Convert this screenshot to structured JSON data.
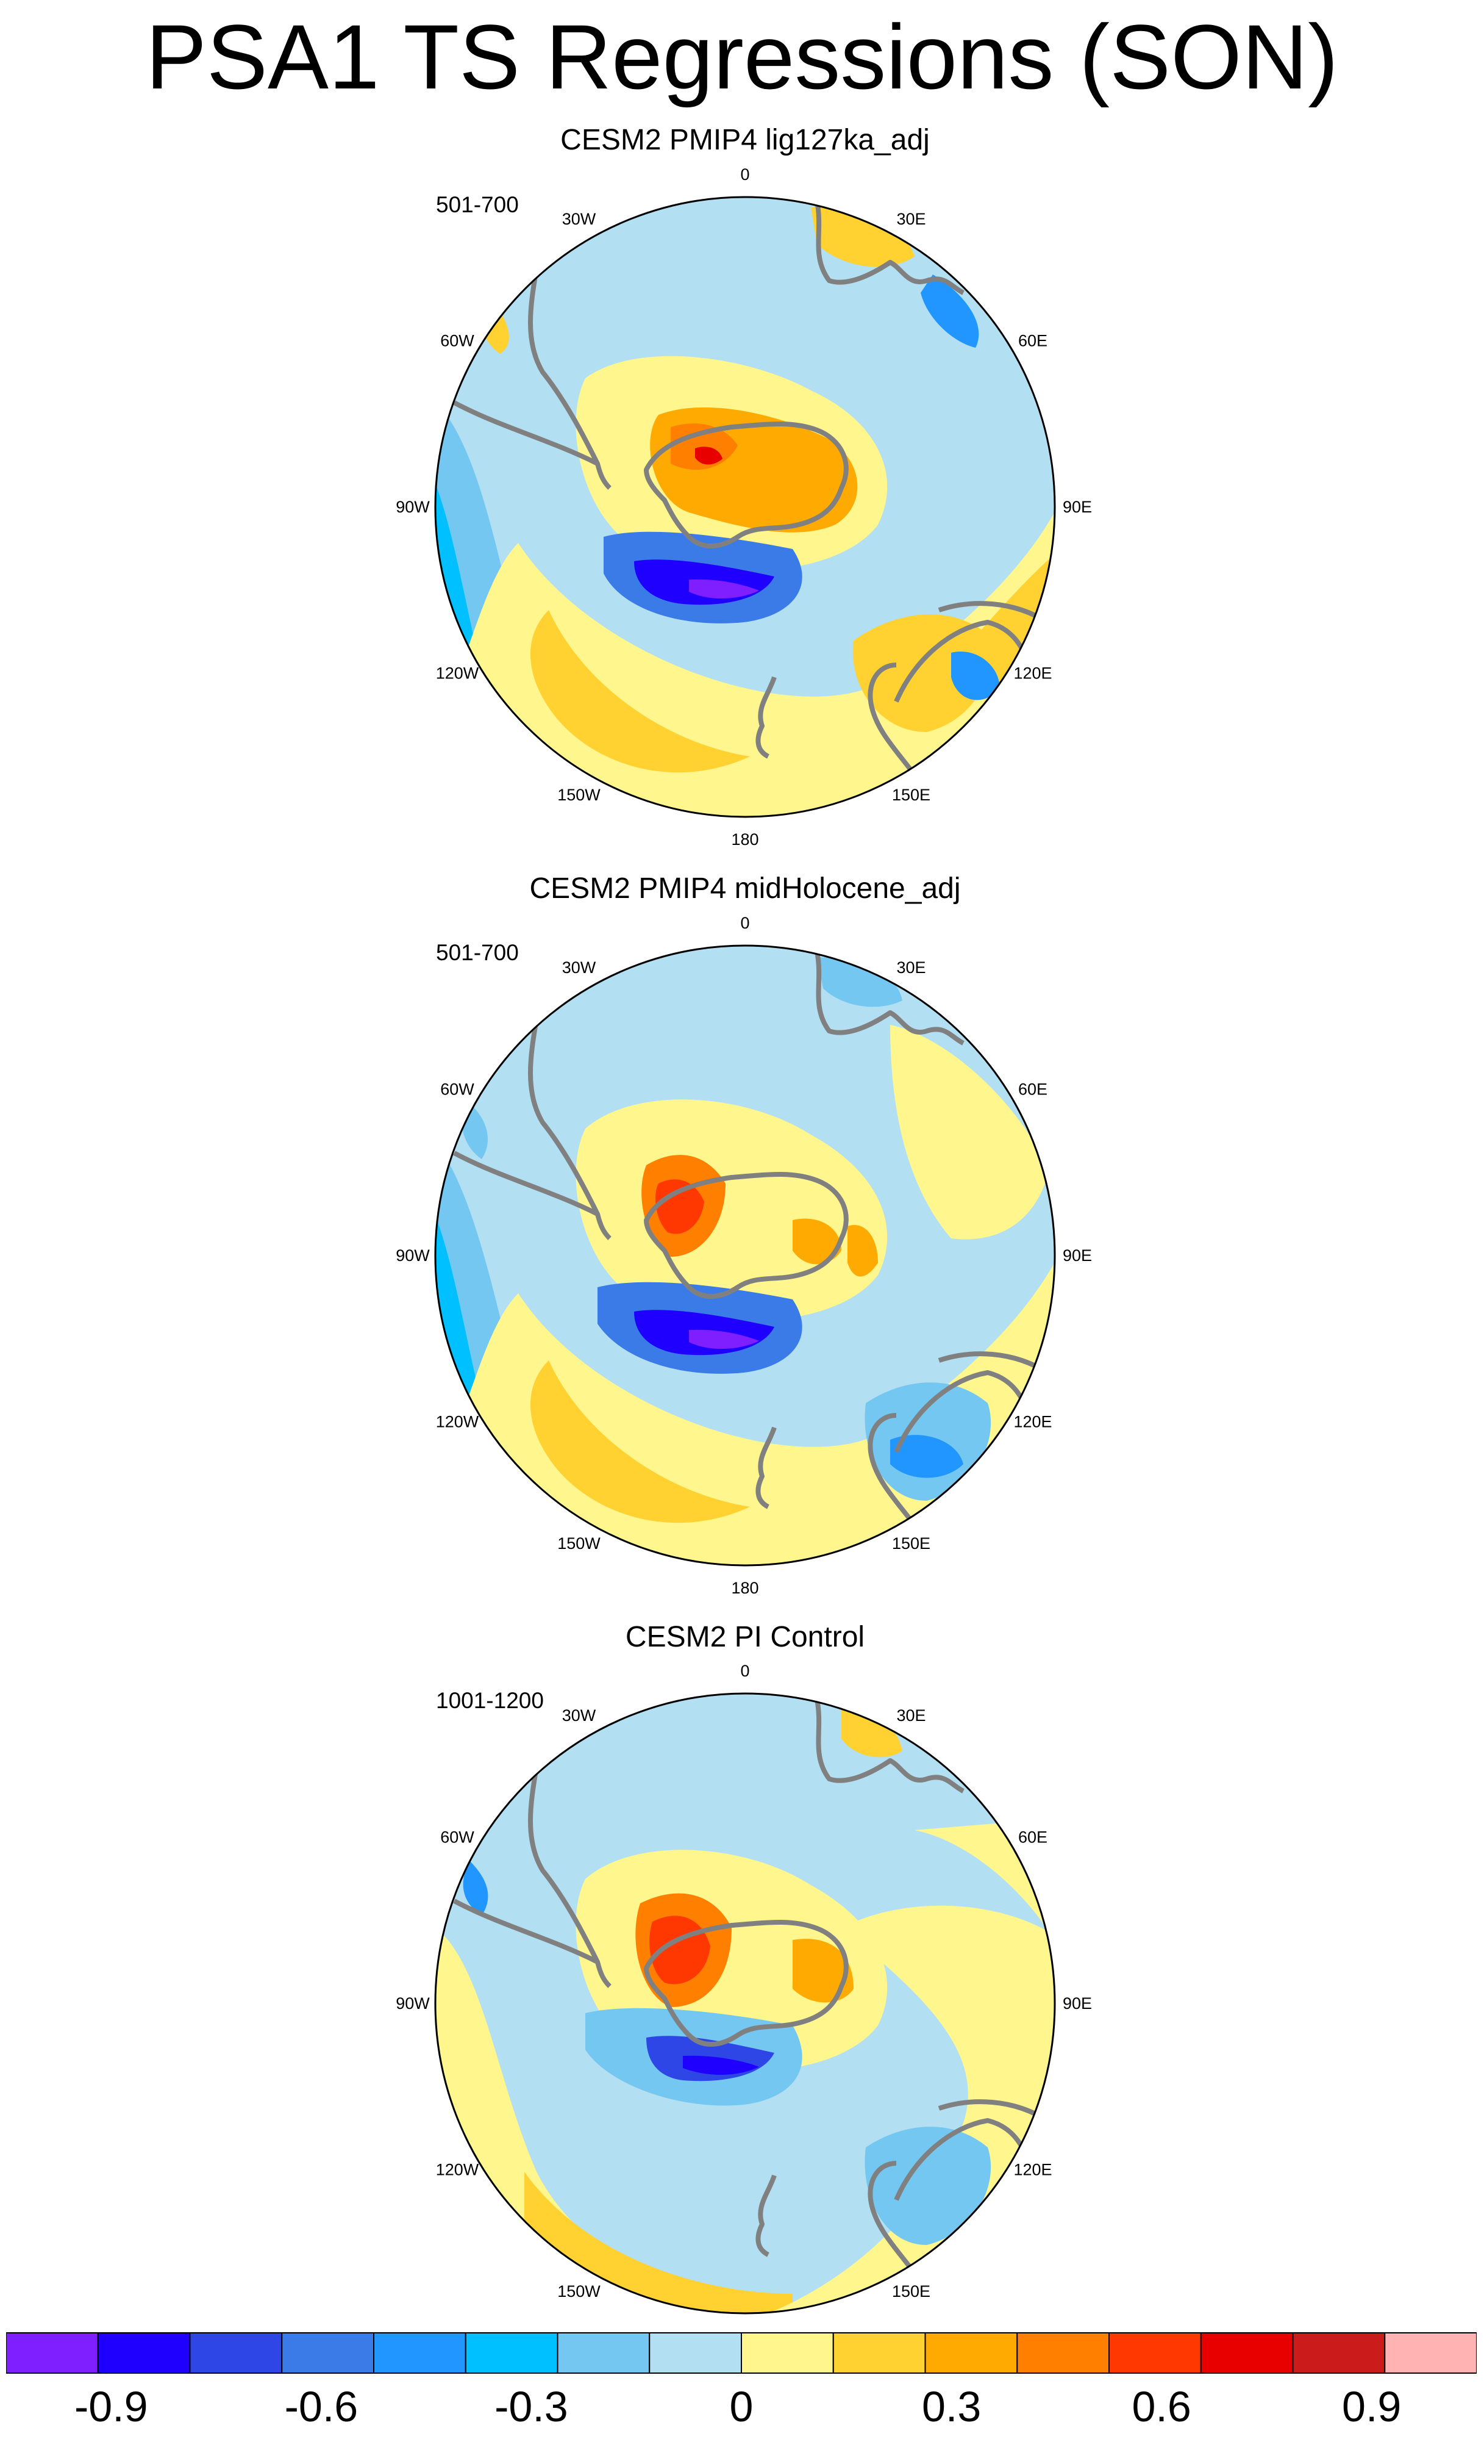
{
  "title": "PSA1 TS Regressions (SON)",
  "panels": [
    {
      "subtitle": "CESM2 PMIP4 lig127ka_adj",
      "years": "501-700"
    },
    {
      "subtitle": "CESM2 PMIP4 midHolocene_adj",
      "years": "501-700"
    },
    {
      "subtitle": "CESM2 PI Control",
      "years": "1001-1200"
    }
  ],
  "longitude_labels": [
    "0",
    "30E",
    "60E",
    "90E",
    "120E",
    "150E",
    "180",
    "150W",
    "120W",
    "90W",
    "60W",
    "30W"
  ],
  "colorbar": {
    "colors": [
      "#7f1fff",
      "#1f00ff",
      "#2f46e6",
      "#3a7be8",
      "#2196ff",
      "#00c0ff",
      "#74c7f0",
      "#b3dff2",
      "#fff68d",
      "#ffd131",
      "#ffaa00",
      "#ff7f00",
      "#ff3700",
      "#e80000",
      "#cc1b1b",
      "#ffb3b3"
    ],
    "labels": [
      "-0.9",
      "-0.6",
      "-0.3",
      "0",
      "0.3",
      "0.6",
      "0.9"
    ],
    "label_values": [
      -0.9,
      -0.6,
      -0.3,
      0,
      0.3,
      0.6,
      0.9
    ],
    "min": -1.05,
    "max": 1.05
  },
  "map_colors": {
    "coast": "#808080",
    "ocean_base": "#b3dff2"
  }
}
